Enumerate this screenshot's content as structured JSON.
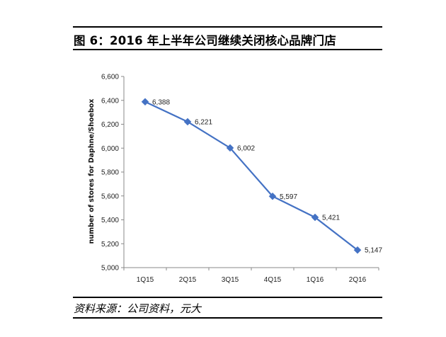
{
  "header": {
    "title": "图 6：2016 年上半年公司继续关闭核心品牌门店"
  },
  "footer": {
    "source": "资料来源：公司资料，元大"
  },
  "chart_data": {
    "type": "line",
    "title": "",
    "xlabel": "",
    "ylabel": "number of stores for Daphne/Shoebox",
    "categories": [
      "1Q15",
      "2Q15",
      "3Q15",
      "4Q15",
      "1Q16",
      "2Q16"
    ],
    "series": [
      {
        "values": [
          6388,
          6221,
          6002,
          5597,
          5421,
          5147
        ]
      }
    ],
    "data_labels": [
      "6,388",
      "6,221",
      "6,002",
      "5,597",
      "5,421",
      "5,147"
    ],
    "ylim": [
      5000,
      6600
    ],
    "yticks": [
      5000,
      5200,
      5400,
      5600,
      5800,
      6000,
      6200,
      6400,
      6600
    ],
    "ytick_labels": [
      "5,000",
      "5,200",
      "5,400",
      "5,600",
      "5,800",
      "6,000",
      "6,200",
      "6,400",
      "6,600"
    ],
    "grid": false,
    "legend": "none",
    "line_color": "#4472c4",
    "marker": "diamond"
  }
}
